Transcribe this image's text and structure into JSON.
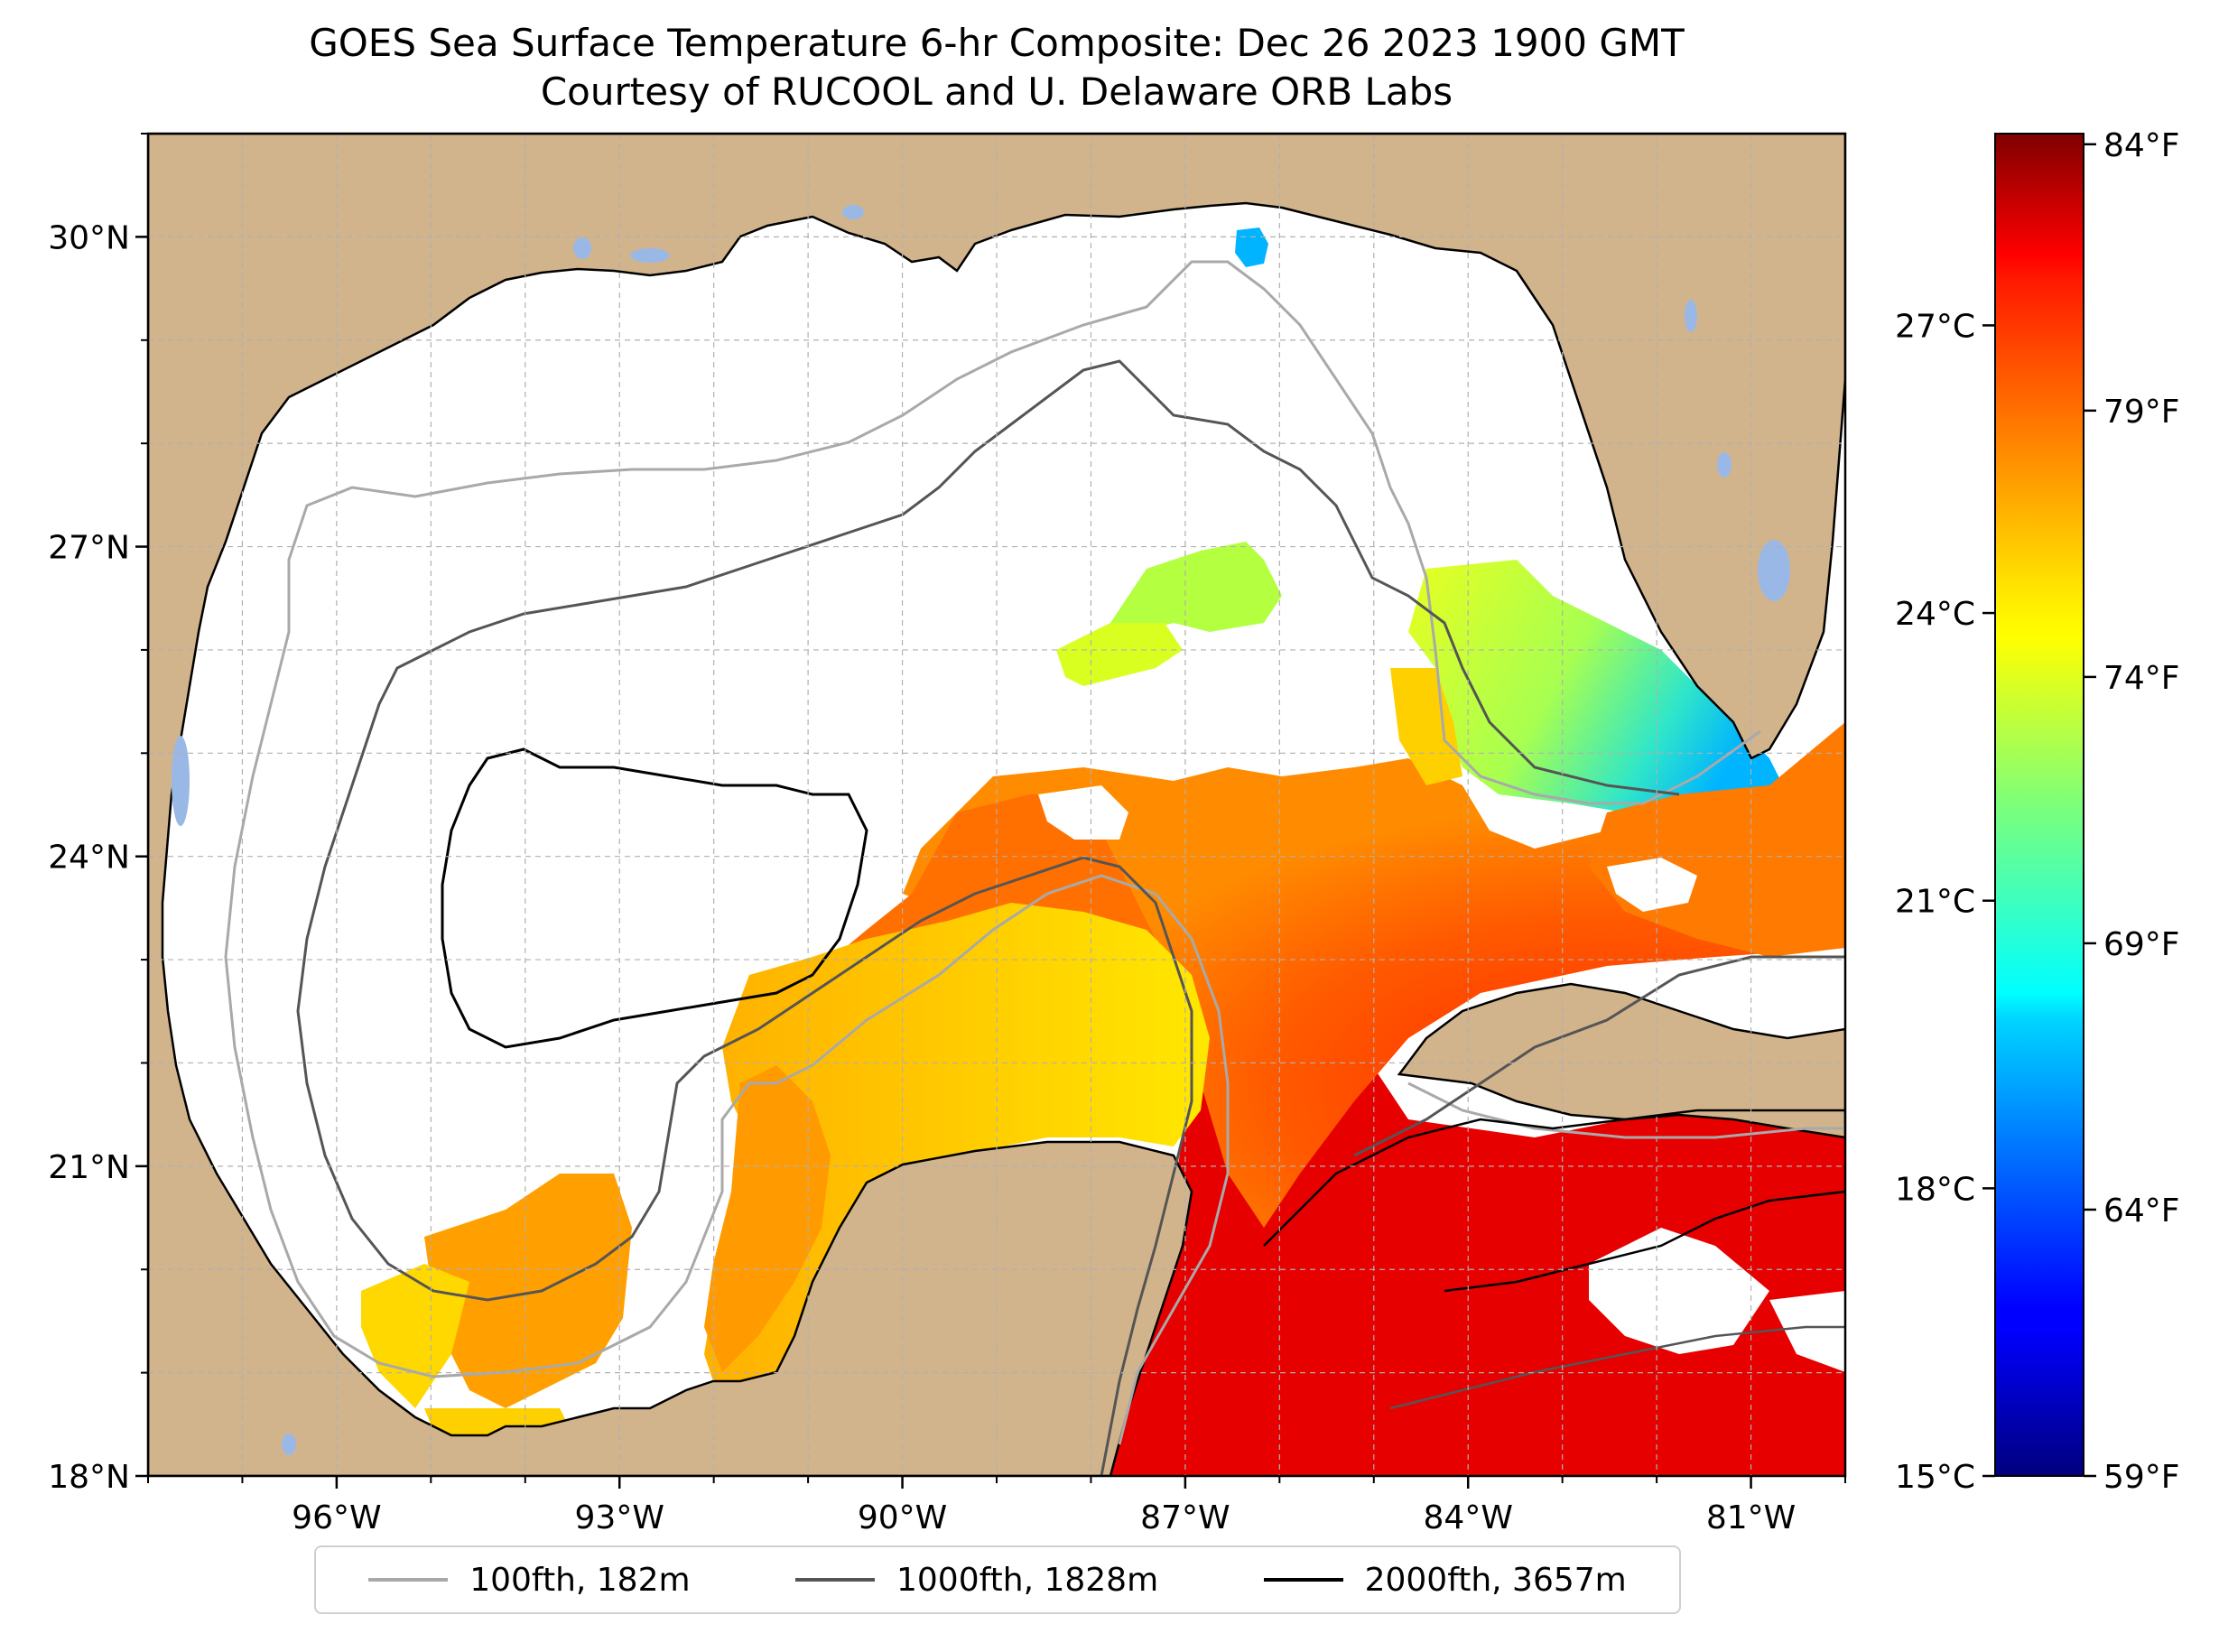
{
  "title": {
    "line1": "GOES Sea Surface Temperature 6-hr Composite: Dec 26 2023 1900 GMT",
    "line2": "Courtesy of RUCOOL and U. Delaware ORB Labs"
  },
  "map": {
    "lon_range": [
      -98,
      -80
    ],
    "lat_range": [
      18,
      31
    ],
    "lon_ticks": [
      {
        "value": -96,
        "label": "96°W"
      },
      {
        "value": -93,
        "label": "93°W"
      },
      {
        "value": -90,
        "label": "90°W"
      },
      {
        "value": -87,
        "label": "87°W"
      },
      {
        "value": -84,
        "label": "84°W"
      },
      {
        "value": -81,
        "label": "81°W"
      }
    ],
    "lat_ticks": [
      {
        "value": 18,
        "label": "18°N"
      },
      {
        "value": 21,
        "label": "21°N"
      },
      {
        "value": 24,
        "label": "24°N"
      },
      {
        "value": 27,
        "label": "27°N"
      },
      {
        "value": 30,
        "label": "30°N"
      }
    ],
    "colors": {
      "land": "#d2b48c",
      "water_nodata": "#ffffff",
      "lakes": "#9ab8e6",
      "grid": "#b0b0b0"
    }
  },
  "colorbar": {
    "colormap": "jet",
    "range_c": [
      15,
      29
    ],
    "celsius_ticks": [
      {
        "value": 15,
        "label": "15°C"
      },
      {
        "value": 18,
        "label": "18°C"
      },
      {
        "value": 21,
        "label": "21°C"
      },
      {
        "value": 24,
        "label": "24°C"
      },
      {
        "value": 27,
        "label": "27°C"
      }
    ],
    "fahrenheit_ticks": [
      {
        "value": 59,
        "label": "59°F"
      },
      {
        "value": 64,
        "label": "64°F"
      },
      {
        "value": 69,
        "label": "69°F"
      },
      {
        "value": 74,
        "label": "74°F"
      },
      {
        "value": 79,
        "label": "79°F"
      },
      {
        "value": 84,
        "label": "84°F"
      }
    ]
  },
  "legend": {
    "items": [
      {
        "label": "100fth, 182m",
        "color": "#a9a9a9"
      },
      {
        "label": "1000fth, 1828m",
        "color": "#555555"
      },
      {
        "label": "2000fth, 3657m",
        "color": "#000000"
      }
    ]
  }
}
